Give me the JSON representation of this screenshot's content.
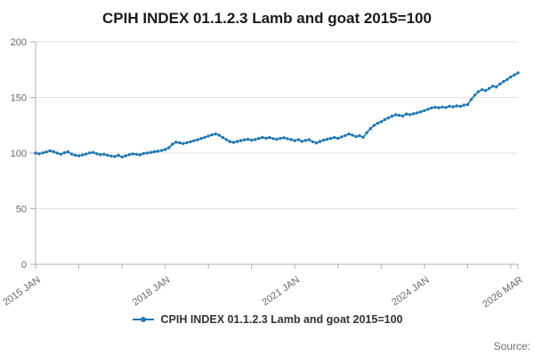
{
  "chart": {
    "title": "CPIH INDEX 01.1.2.3 Lamb and goat 2015=100",
    "legend": "CPIH INDEX 01.1.2.3 Lamb and goat 2015=100",
    "source": "Source:"
  },
  "chart_data": {
    "type": "line",
    "title": "CPIH INDEX 01.1.2.3 Lamb and goat 2015=100",
    "series_name": "CPIH INDEX 01.1.2.3 Lamb and goat 2015=100",
    "x_start": "2015 JAN",
    "x_end": "2026 MAR",
    "x_frequency": "monthly",
    "ylim": [
      0,
      200
    ],
    "y_ticks": [
      0,
      50,
      100,
      150,
      200
    ],
    "line_color": "#1f77b4",
    "grid_color": "#e3e3e3",
    "axis_color": "#b0b0b0",
    "tick_label_color": "#666666",
    "x_tick_labels": [
      {
        "index": 0,
        "label": "2015 JAN"
      },
      {
        "index": 36,
        "label": "2018 JAN"
      },
      {
        "index": 72,
        "label": "2021 JAN"
      },
      {
        "index": 108,
        "label": "2024 JAN"
      },
      {
        "index": 134,
        "label": "2026 MAR"
      }
    ],
    "x_minor_tick_indices": [
      0,
      12,
      24,
      36,
      48,
      60,
      72,
      84,
      96,
      108,
      120,
      132,
      134
    ],
    "values": [
      100,
      99.4,
      100.2,
      101,
      102.1,
      101.2,
      100.1,
      99,
      100.3,
      101.1,
      99.2,
      98.1,
      97.6,
      98.3,
      99.1,
      100.2,
      100.6,
      99.4,
      98.6,
      99,
      98.1,
      97.4,
      96.9,
      98,
      96.6,
      97.5,
      98.6,
      99.3,
      99,
      98.4,
      99.6,
      100.1,
      100.6,
      101.2,
      101.7,
      102.3,
      103.2,
      104.8,
      107.9,
      109.8,
      109.2,
      108.6,
      109.4,
      110.2,
      111.1,
      112,
      113.1,
      114.2,
      115.3,
      116.4,
      117.2,
      116.1,
      114,
      112.1,
      110.3,
      109.6,
      110.4,
      111.2,
      111.9,
      112.4,
      111.6,
      112.2,
      113.1,
      114,
      113.4,
      113.9,
      113,
      112.4,
      113.3,
      113.8,
      112.9,
      112.1,
      111.2,
      112.1,
      110.6,
      111.4,
      112,
      110.2,
      109.1,
      110.4,
      111.6,
      112.4,
      113.2,
      114.1,
      113.2,
      114.6,
      115.8,
      117.1,
      116.2,
      114.8,
      115.6,
      114.2,
      118.3,
      121.9,
      124.8,
      126.9,
      128.2,
      130.1,
      131.6,
      133.2,
      134.4,
      133.9,
      133.4,
      135.1,
      134.6,
      135.4,
      136.2,
      137.1,
      138.2,
      139.4,
      140.6,
      141.2,
      140.7,
      141.4,
      141,
      142.1,
      141.6,
      142.4,
      142,
      143.1,
      143.6,
      148.2,
      152.1,
      155.3,
      157,
      156.2,
      158.1,
      160.2,
      159.4,
      162.1,
      164.3,
      166.2,
      168.4,
      170.3,
      172.1
    ]
  }
}
